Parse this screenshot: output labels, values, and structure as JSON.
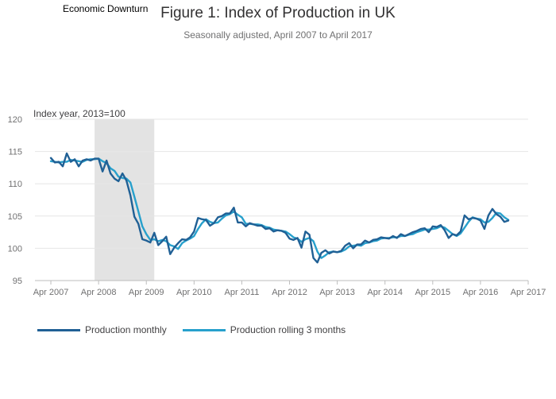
{
  "header": {
    "shading_label": "Economic Downturn",
    "title": "Figure 1: Index of Production in UK",
    "subtitle": "Seasonally adjusted, April 2007 to April 2017"
  },
  "colors": {
    "monthly": "#206095",
    "rolling": "#27a0cc",
    "shading": "#e3e3e3",
    "grid": "#e6e6e6"
  },
  "chart_data": {
    "type": "line",
    "ylabel": "Index year, 2013=100",
    "ylim": [
      95,
      120
    ],
    "y_ticks": [
      95,
      100,
      105,
      110,
      115,
      120
    ],
    "x_range": [
      "2006-12",
      "2017-04"
    ],
    "x_ticks": [
      "Apr 2007",
      "Apr 2008",
      "Apr 2009",
      "Apr 2010",
      "Apr 2011",
      "Apr 2012",
      "Apr 2013",
      "Apr 2014",
      "Apr 2015",
      "Apr 2016",
      "Apr 2017"
    ],
    "grid": true,
    "legend": "bottom",
    "shaded_periods": [
      {
        "start": "2008-03",
        "end": "2009-06"
      }
    ],
    "start_month": "2007-04",
    "series": [
      {
        "name": "Production monthly",
        "values": [
          114,
          113.3,
          113.4,
          112.7,
          114.7,
          113.4,
          113.8,
          112.7,
          113.6,
          113.8,
          113.6,
          113.9,
          113.9,
          111.9,
          113.6,
          111.6,
          110.8,
          110.4,
          111.6,
          110.5,
          108.2,
          104.9,
          103.8,
          101.4,
          101.2,
          100.9,
          102.4,
          100.5,
          101.1,
          101.8,
          99.1,
          100.1,
          100.8,
          101.4,
          101.3,
          101.7,
          102.6,
          104.7,
          104.5,
          104.4,
          103.5,
          103.9,
          104.8,
          105,
          105.4,
          105.4,
          106.3,
          104,
          104,
          103.4,
          103.9,
          103.7,
          103.5,
          103.5,
          103,
          103.1,
          102.6,
          102.8,
          102.7,
          102.4,
          101.5,
          101.3,
          101.6,
          100.1,
          102.6,
          102.1,
          98.5,
          97.8,
          99.3,
          99.7,
          99.2,
          99.5,
          99.4,
          99.6,
          100.4,
          100.8,
          100,
          100.6,
          100.6,
          101.2,
          100.9,
          101.3,
          101.4,
          101.7,
          101.6,
          101.5,
          101.9,
          101.6,
          102.2,
          101.9,
          102.2,
          102.5,
          102.7,
          103,
          103.1,
          102.5,
          103.4,
          103.3,
          103.6,
          102.8,
          101.6,
          102.2,
          102,
          102.6,
          105.1,
          104.5,
          104.7,
          104.6,
          104.3,
          103,
          105.1,
          106.1,
          105.3,
          104.9,
          104.1,
          104.3
        ]
      },
      {
        "name": "Production rolling 3 months",
        "values": [
          113.5,
          113.4,
          113.3,
          113.4,
          113.4,
          113.7,
          113.6,
          113.5,
          113.4,
          113.7,
          113.8,
          113.8,
          113.9,
          113.5,
          113.2,
          112.4,
          112,
          111.1,
          110.9,
          110.8,
          110.2,
          108,
          105.7,
          103.4,
          102.2,
          101.3,
          101.4,
          101.1,
          101.3,
          101.1,
          100.5,
          100.3,
          99.9,
          100.8,
          101.2,
          101.5,
          101.9,
          103,
          103.9,
          104.5,
          104.1,
          103.9,
          104,
          104.6,
          105.1,
          105.3,
          105.7,
          105.2,
          104.8,
          103.8,
          103.8,
          103.7,
          103.7,
          103.6,
          103.3,
          103.2,
          102.9,
          102.8,
          102.7,
          102.6,
          102.2,
          101.7,
          101.5,
          101,
          101.4,
          101.6,
          101.1,
          99.5,
          98.5,
          98.9,
          99.4,
          99.5,
          99.4,
          99.5,
          99.8,
          100.3,
          100.4,
          100.5,
          100.4,
          100.8,
          100.9,
          101.1,
          101.2,
          101.5,
          101.6,
          101.6,
          101.7,
          101.7,
          101.9,
          101.9,
          102.1,
          102.2,
          102.5,
          102.7,
          102.9,
          102.9,
          103,
          103.1,
          103.4,
          103.2,
          102.7,
          102.2,
          101.9,
          102.3,
          103.2,
          104.1,
          104.8,
          104.6,
          104.5,
          104,
          104.1,
          104.7,
          105.5,
          105.4,
          104.8,
          104.4
        ]
      }
    ]
  }
}
